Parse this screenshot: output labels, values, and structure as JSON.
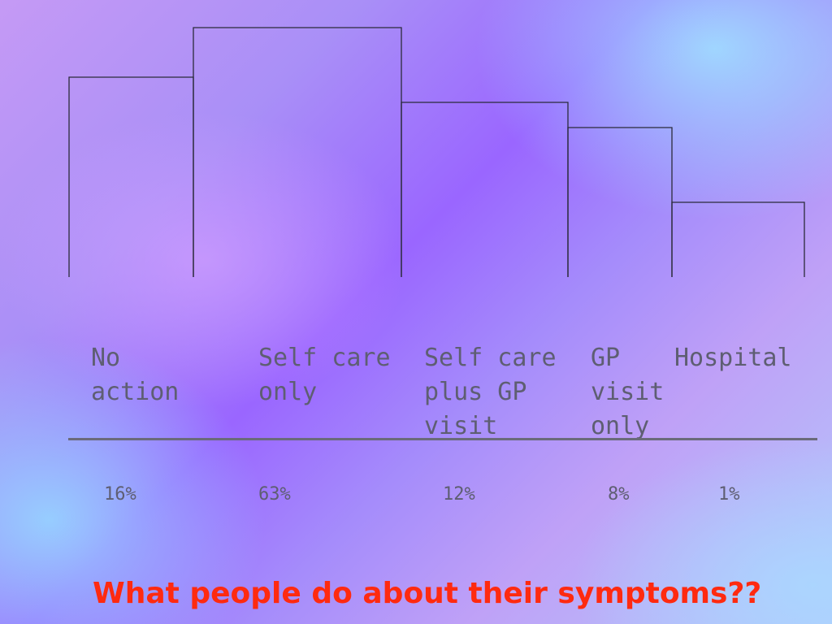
{
  "chart_data": {
    "type": "bar",
    "title": "What people do about their symptoms??",
    "categories": [
      "No\naction",
      "Self care\nonly",
      "Self care\nplus GP\nvisit",
      "GP\nvisit\nonly",
      "Hospital"
    ],
    "value_labels": [
      "16%",
      "63%",
      "12%",
      "8%",
      "1%"
    ],
    "values": [
      16,
      63,
      12,
      8,
      1
    ],
    "bar_heights_relative": [
      0.8,
      1.0,
      0.7,
      0.6,
      0.3
    ],
    "colors": {
      "bar_line": "#2b2b3a",
      "label_text": "#5e5e72",
      "title_text": "#ff2a10"
    }
  }
}
